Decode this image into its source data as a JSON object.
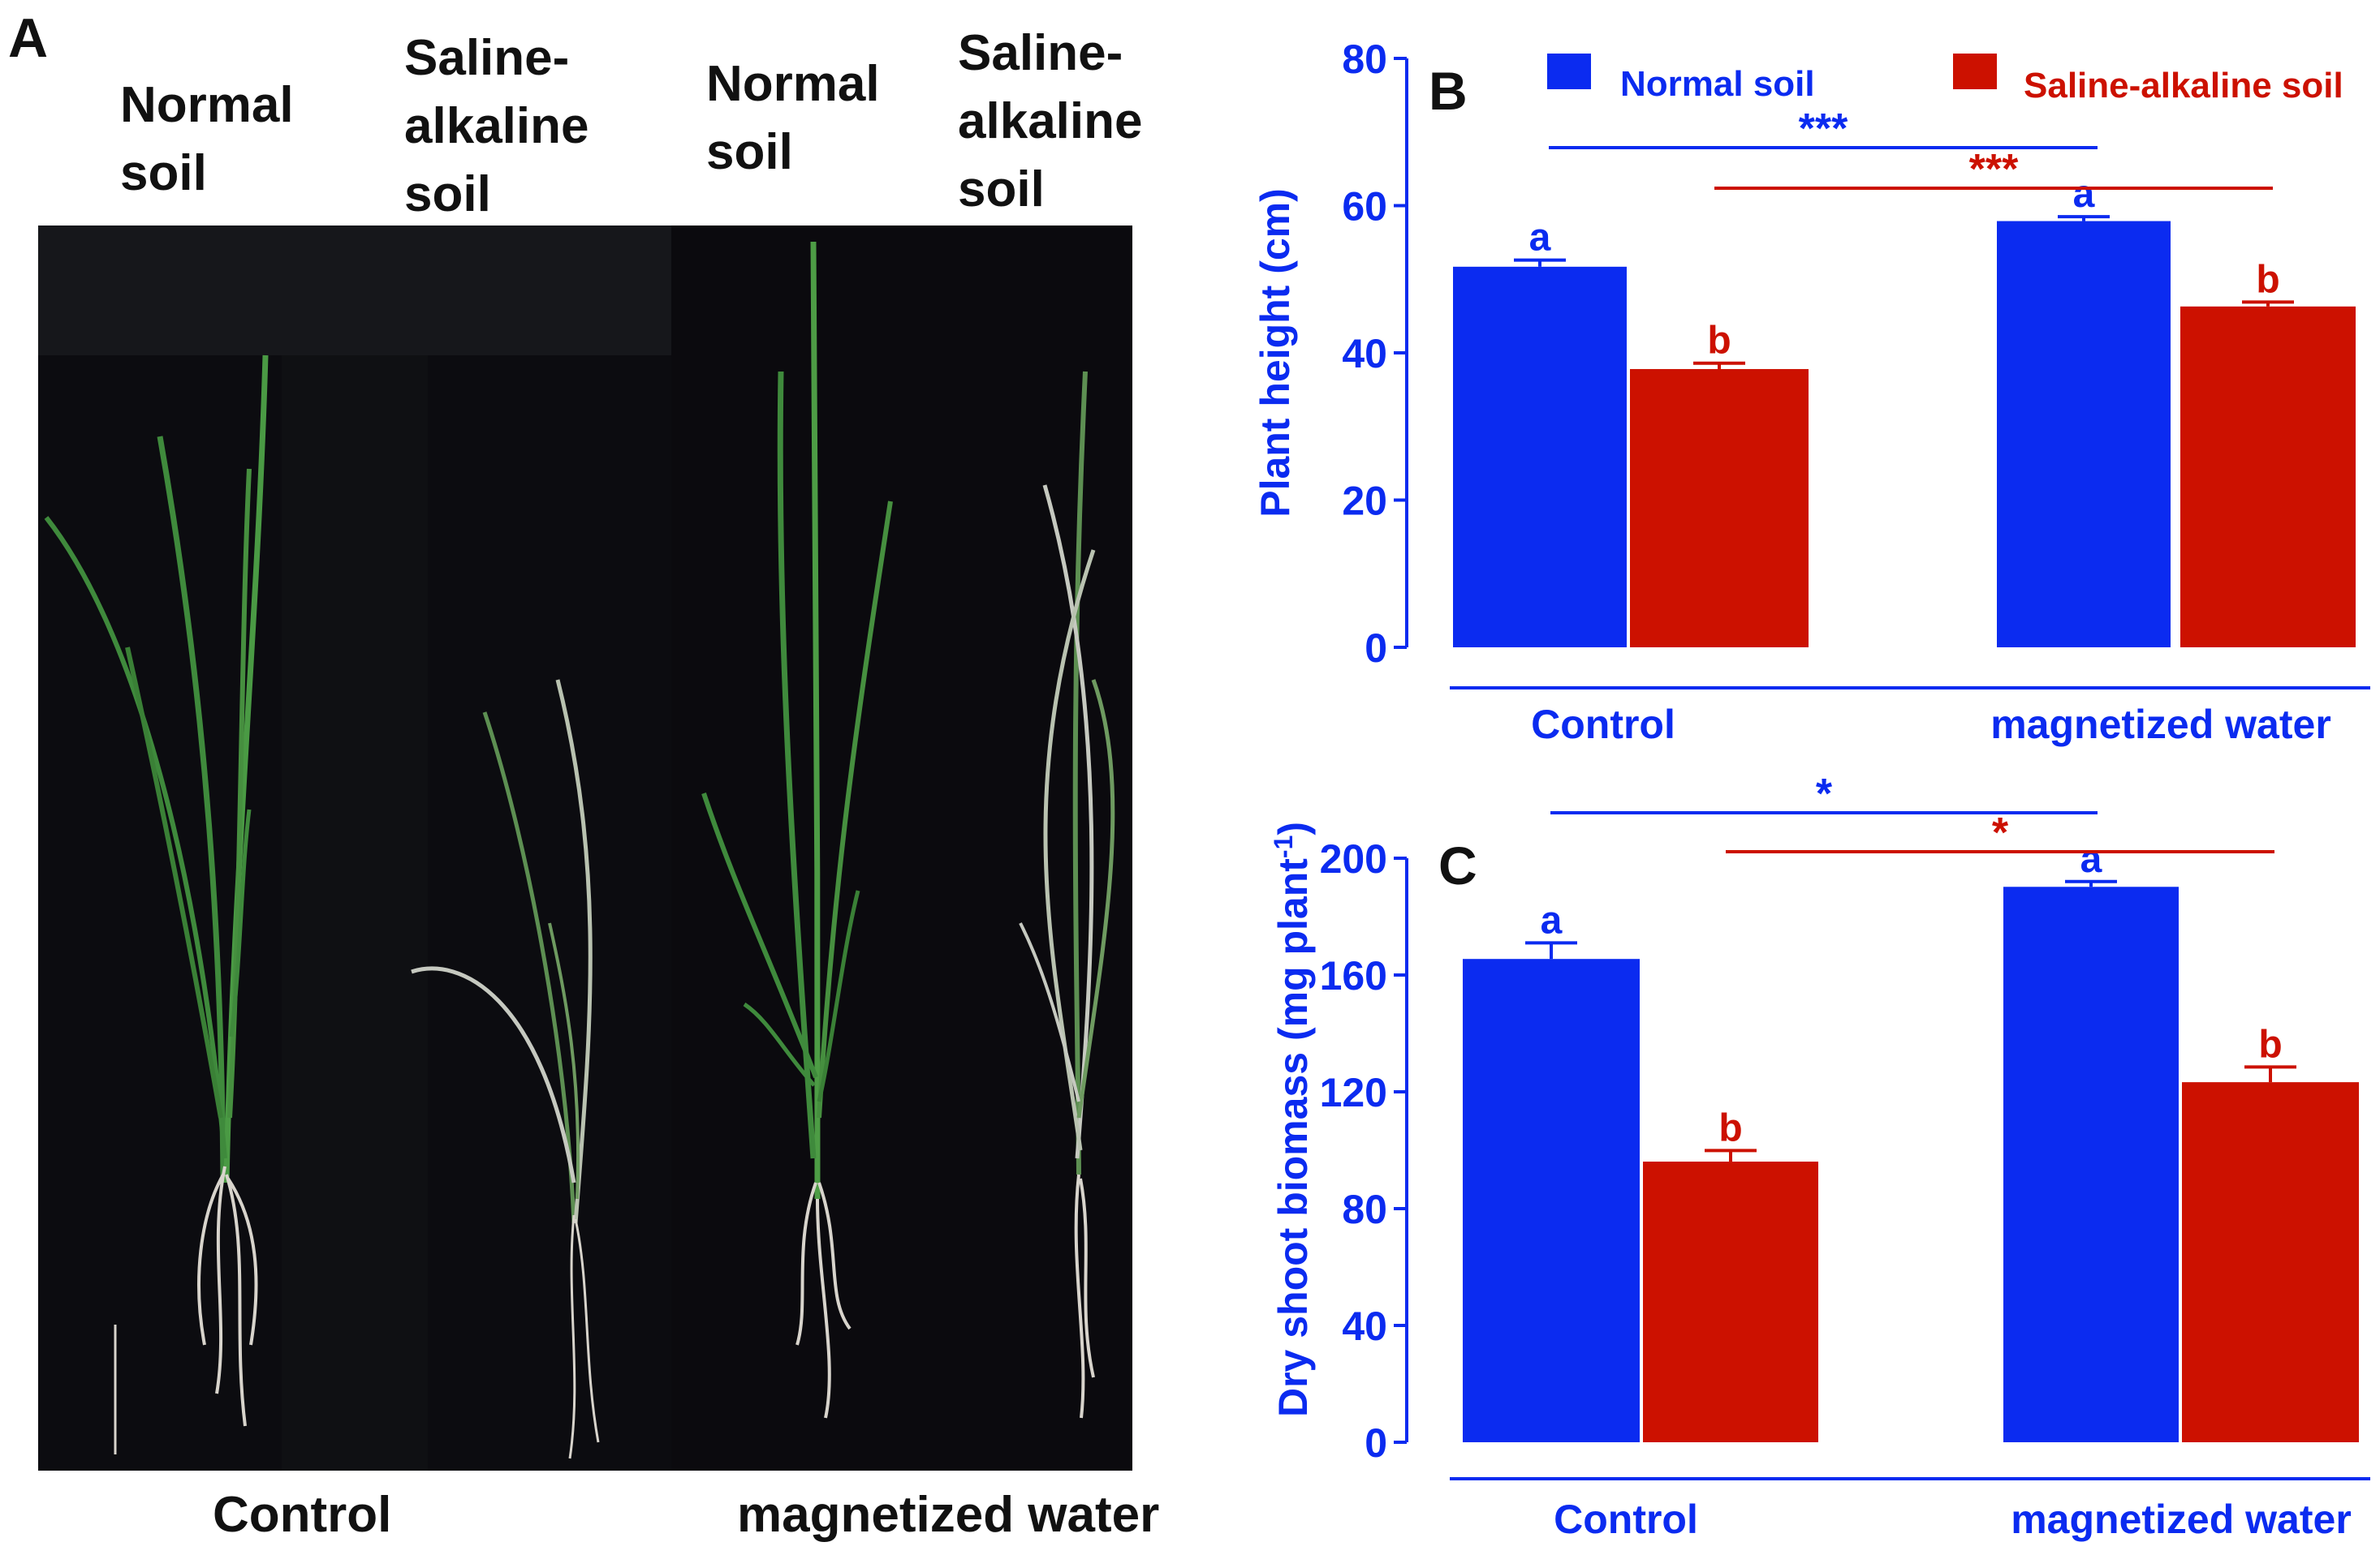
{
  "panel_a": {
    "letter": "A",
    "columns": [
      {
        "lines": [
          "Normal",
          "soil"
        ]
      },
      {
        "lines": [
          "Saline-",
          "alkaline",
          "soil"
        ]
      },
      {
        "lines": [
          "Normal",
          "soil"
        ]
      },
      {
        "lines": [
          "Saline-",
          "alkaline",
          "soil"
        ]
      }
    ],
    "bottom_labels": [
      "Control",
      "magnetized water"
    ]
  },
  "colors": {
    "blue": "#0b2bf0",
    "red": "#cc1100",
    "photo_bg": "#0a0a0c",
    "leaf": "#3f8a3c",
    "root": "#d8d4cc"
  },
  "chart_data": [
    {
      "panel": "B",
      "type": "bar",
      "ylabel": "Plant height (cm)",
      "ylim": [
        0,
        80
      ],
      "yticks": [
        0,
        20,
        40,
        60,
        80
      ],
      "categories": [
        "Control",
        "magnetized water"
      ],
      "legend": [
        {
          "name": "Normal soil",
          "color": "blue"
        },
        {
          "name": "Saline-alkaline soil",
          "color": "red"
        }
      ],
      "legend_position": "top",
      "series": [
        {
          "name": "Normal soil",
          "values": [
            51.7,
            57.9
          ],
          "errors": [
            0.9,
            0.6
          ],
          "letters": [
            "a",
            "a"
          ]
        },
        {
          "name": "Saline-alkaline soil",
          "values": [
            37.8,
            46.3
          ],
          "errors": [
            0.8,
            0.6
          ],
          "letters": [
            "b",
            "b"
          ]
        }
      ],
      "significance": [
        {
          "series": "Normal soil",
          "label": "***"
        },
        {
          "series": "Saline-alkaline soil",
          "label": "***"
        }
      ]
    },
    {
      "panel": "C",
      "type": "bar",
      "ylabel": "Dry shoot  biomass (mg plant",
      "ylabel_sup": "-1",
      "ylabel_close": ")",
      "ylim": [
        0,
        200
      ],
      "yticks": [
        0,
        40,
        80,
        120,
        160,
        200
      ],
      "categories": [
        "Control",
        "magnetized water"
      ],
      "series": [
        {
          "name": "Normal soil",
          "values": [
            165.5,
            190.2
          ],
          "errors": [
            5.5,
            1.8
          ],
          "letters": [
            "a",
            "a"
          ]
        },
        {
          "name": "Saline-alkaline soil",
          "values": [
            96.1,
            123.3
          ],
          "errors": [
            3.8,
            5.2
          ],
          "letters": [
            "b",
            "b"
          ]
        }
      ],
      "significance": [
        {
          "series": "Normal soil",
          "label": "*"
        },
        {
          "series": "Saline-alkaline soil",
          "label": "*"
        }
      ]
    }
  ]
}
